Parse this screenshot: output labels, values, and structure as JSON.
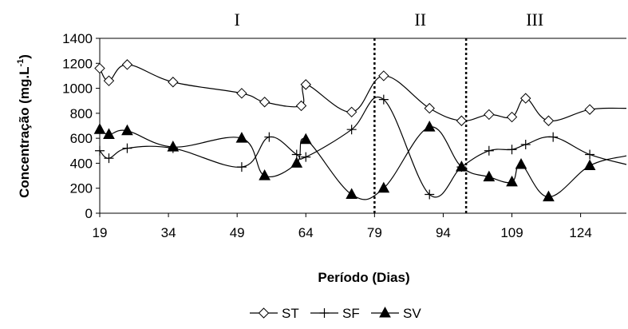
{
  "chart_data": {
    "type": "line",
    "xlabel": "Período (Dias)",
    "ylabel": "Concentração (mg.L",
    "ylabel_sup": "-1",
    "ylabel_close": ")",
    "xlim": [
      19,
      134
    ],
    "ylim": [
      0,
      1400
    ],
    "x_ticks": [
      19,
      34,
      49,
      64,
      79,
      94,
      109,
      124
    ],
    "y_ticks": [
      0,
      200,
      400,
      600,
      800,
      1000,
      1200,
      1400
    ],
    "phases": [
      {
        "label": "I",
        "x_center": 49
      },
      {
        "label": "II",
        "x_center": 89
      },
      {
        "label": "III",
        "x_center": 114
      }
    ],
    "phase_dividers": [
      79,
      99
    ],
    "series": [
      {
        "name": "ST",
        "marker": "diamond",
        "points": [
          [
            19,
            1160
          ],
          [
            21,
            1060
          ],
          [
            25,
            1190
          ],
          [
            35,
            1050
          ],
          [
            50,
            960
          ],
          [
            55,
            890
          ],
          [
            63,
            860
          ],
          [
            64,
            1030
          ],
          [
            74,
            810
          ],
          [
            81,
            1100
          ],
          [
            91,
            840
          ],
          [
            98,
            740
          ],
          [
            104,
            790
          ],
          [
            109,
            770
          ],
          [
            112,
            920
          ],
          [
            117,
            740
          ],
          [
            126,
            830
          ],
          [
            134,
            840
          ]
        ]
      },
      {
        "name": "SF",
        "marker": "plus",
        "points": [
          [
            19,
            500
          ],
          [
            21,
            440
          ],
          [
            25,
            520
          ],
          [
            35,
            520
          ],
          [
            50,
            370
          ],
          [
            56,
            610
          ],
          [
            62,
            470
          ],
          [
            64,
            450
          ],
          [
            74,
            670
          ],
          [
            81,
            910
          ],
          [
            91,
            150
          ],
          [
            98,
            370
          ],
          [
            104,
            500
          ],
          [
            109,
            510
          ],
          [
            112,
            550
          ],
          [
            118,
            610
          ],
          [
            126,
            470
          ],
          [
            134,
            390
          ]
        ]
      },
      {
        "name": "SV",
        "marker": "triangle",
        "points": [
          [
            19,
            670
          ],
          [
            21,
            630
          ],
          [
            25,
            660
          ],
          [
            35,
            530
          ],
          [
            50,
            600
          ],
          [
            55,
            300
          ],
          [
            62,
            400
          ],
          [
            64,
            590
          ],
          [
            74,
            150
          ],
          [
            81,
            200
          ],
          [
            91,
            690
          ],
          [
            98,
            370
          ],
          [
            104,
            290
          ],
          [
            109,
            250
          ],
          [
            111,
            390
          ],
          [
            117,
            130
          ],
          [
            126,
            380
          ],
          [
            134,
            460
          ]
        ]
      }
    ]
  }
}
